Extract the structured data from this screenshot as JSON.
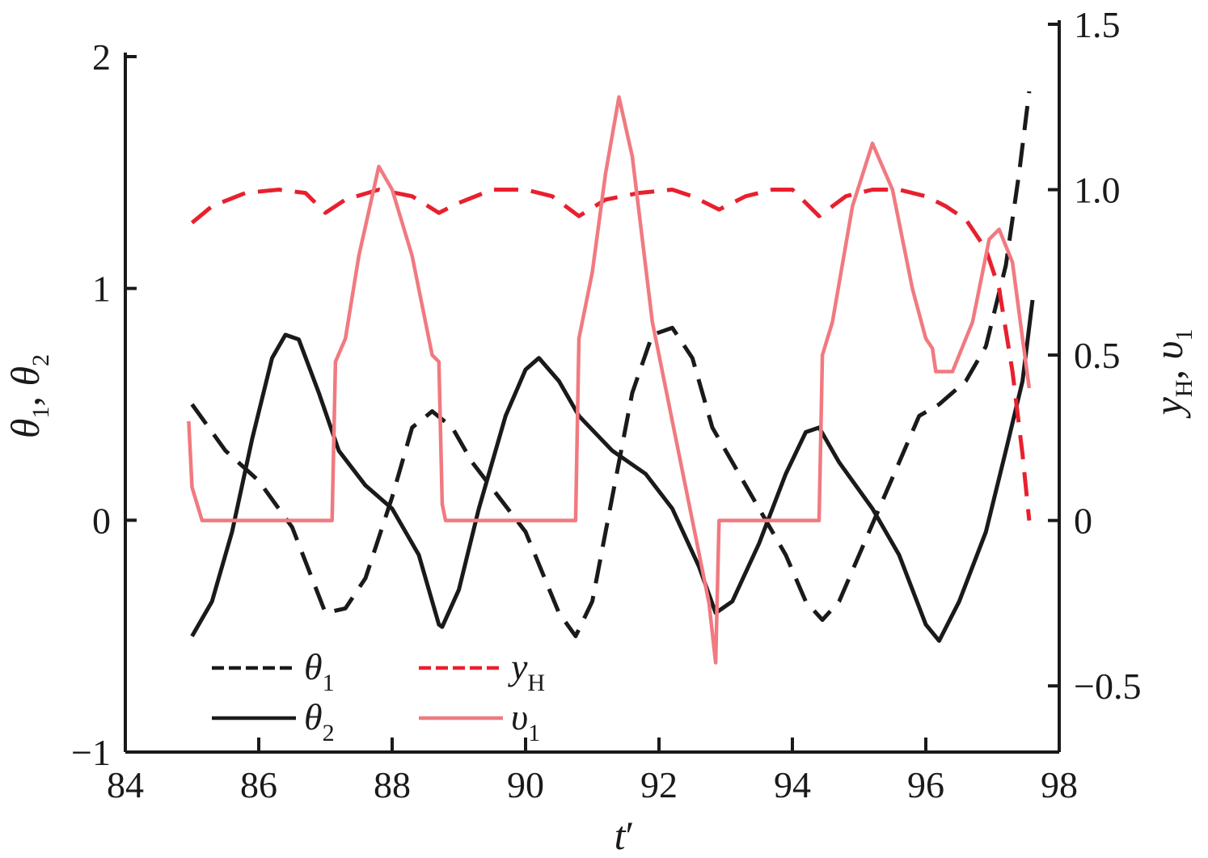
{
  "chart_data": {
    "type": "line",
    "xlabel": {
      "main": "t",
      "prime": "′"
    },
    "ylabel_left": {
      "a": "θ",
      "a_sub": "1",
      "sep": ", ",
      "b": "θ",
      "b_sub": "2"
    },
    "ylabel_right": {
      "a": "y",
      "a_sub": "H",
      "sep": ", ",
      "b": "υ",
      "b_sub": "1"
    },
    "xlim": [
      84,
      98
    ],
    "ylim_left": [
      -1,
      2
    ],
    "ylim_right": [
      -0.7,
      1.5
    ],
    "x_ticks": [
      "84",
      "86",
      "88",
      "90",
      "92",
      "94",
      "96",
      "98"
    ],
    "y_left_ticks": [
      "2",
      "1",
      "0",
      "−1"
    ],
    "y_right_ticks": [
      "1.5",
      "1.0",
      "0.5",
      "0",
      "−0.5"
    ],
    "colors": {
      "black": "#1a1a1a",
      "red": "#e8202e",
      "pink": "#f07a80"
    },
    "series": [
      {
        "name": "θ",
        "sub": "1",
        "axis": "left",
        "color": "#1a1a1a",
        "dash": "dashed",
        "points": [
          [
            85.0,
            0.5
          ],
          [
            85.5,
            0.3
          ],
          [
            86.0,
            0.17
          ],
          [
            86.5,
            -0.03
          ],
          [
            87.0,
            -0.4
          ],
          [
            87.3,
            -0.38
          ],
          [
            87.6,
            -0.25
          ],
          [
            88.0,
            0.1
          ],
          [
            88.3,
            0.4
          ],
          [
            88.6,
            0.47
          ],
          [
            88.9,
            0.4
          ],
          [
            89.2,
            0.25
          ],
          [
            89.6,
            0.1
          ],
          [
            90.0,
            -0.05
          ],
          [
            90.5,
            -0.4
          ],
          [
            90.75,
            -0.5
          ],
          [
            91.0,
            -0.35
          ],
          [
            91.3,
            0.1
          ],
          [
            91.6,
            0.55
          ],
          [
            91.9,
            0.8
          ],
          [
            92.2,
            0.83
          ],
          [
            92.5,
            0.7
          ],
          [
            92.8,
            0.4
          ],
          [
            93.2,
            0.2
          ],
          [
            93.5,
            0.05
          ],
          [
            93.9,
            -0.15
          ],
          [
            94.2,
            -0.35
          ],
          [
            94.45,
            -0.43
          ],
          [
            94.7,
            -0.35
          ],
          [
            95.0,
            -0.15
          ],
          [
            95.3,
            0.05
          ],
          [
            95.6,
            0.25
          ],
          [
            95.9,
            0.45
          ],
          [
            96.2,
            0.5
          ],
          [
            96.6,
            0.6
          ],
          [
            96.9,
            0.75
          ],
          [
            97.2,
            1.1
          ],
          [
            97.4,
            1.5
          ],
          [
            97.55,
            1.85
          ]
        ]
      },
      {
        "name": "θ",
        "sub": "2",
        "axis": "left",
        "color": "#1a1a1a",
        "dash": "solid",
        "points": [
          [
            85.0,
            -0.5
          ],
          [
            85.3,
            -0.35
          ],
          [
            85.6,
            -0.05
          ],
          [
            85.9,
            0.35
          ],
          [
            86.2,
            0.7
          ],
          [
            86.4,
            0.8
          ],
          [
            86.6,
            0.78
          ],
          [
            86.9,
            0.55
          ],
          [
            87.2,
            0.3
          ],
          [
            87.6,
            0.15
          ],
          [
            88.0,
            0.05
          ],
          [
            88.4,
            -0.15
          ],
          [
            88.7,
            -0.45
          ],
          [
            88.75,
            -0.46
          ],
          [
            89.0,
            -0.3
          ],
          [
            89.3,
            0.05
          ],
          [
            89.7,
            0.45
          ],
          [
            90.0,
            0.65
          ],
          [
            90.2,
            0.7
          ],
          [
            90.5,
            0.6
          ],
          [
            90.8,
            0.45
          ],
          [
            91.3,
            0.3
          ],
          [
            91.8,
            0.2
          ],
          [
            92.2,
            0.05
          ],
          [
            92.6,
            -0.2
          ],
          [
            92.85,
            -0.4
          ],
          [
            93.1,
            -0.35
          ],
          [
            93.5,
            -0.1
          ],
          [
            93.9,
            0.2
          ],
          [
            94.2,
            0.38
          ],
          [
            94.4,
            0.4
          ],
          [
            94.7,
            0.25
          ],
          [
            95.2,
            0.05
          ],
          [
            95.6,
            -0.15
          ],
          [
            96.0,
            -0.45
          ],
          [
            96.2,
            -0.52
          ],
          [
            96.5,
            -0.35
          ],
          [
            96.9,
            -0.05
          ],
          [
            97.2,
            0.3
          ],
          [
            97.45,
            0.6
          ],
          [
            97.6,
            0.95
          ]
        ]
      },
      {
        "name": "y",
        "sub": "H",
        "axis": "right",
        "color": "#e8202e",
        "dash": "dashed",
        "points": [
          [
            85.0,
            0.9
          ],
          [
            85.3,
            0.95
          ],
          [
            85.8,
            0.99
          ],
          [
            86.3,
            1.0
          ],
          [
            86.7,
            0.99
          ],
          [
            87.0,
            0.93
          ],
          [
            87.3,
            0.97
          ],
          [
            87.8,
            1.0
          ],
          [
            88.3,
            0.98
          ],
          [
            88.7,
            0.93
          ],
          [
            89.0,
            0.96
          ],
          [
            89.5,
            1.0
          ],
          [
            90.0,
            1.0
          ],
          [
            90.4,
            0.98
          ],
          [
            90.8,
            0.92
          ],
          [
            91.2,
            0.97
          ],
          [
            91.7,
            0.99
          ],
          [
            92.2,
            1.0
          ],
          [
            92.5,
            0.98
          ],
          [
            92.9,
            0.94
          ],
          [
            93.3,
            0.98
          ],
          [
            93.7,
            1.0
          ],
          [
            94.0,
            1.0
          ],
          [
            94.4,
            0.92
          ],
          [
            94.8,
            0.98
          ],
          [
            95.2,
            1.0
          ],
          [
            95.6,
            1.0
          ],
          [
            96.0,
            0.98
          ],
          [
            96.3,
            0.95
          ],
          [
            96.6,
            0.91
          ],
          [
            96.9,
            0.82
          ],
          [
            97.1,
            0.7
          ],
          [
            97.3,
            0.45
          ],
          [
            97.45,
            0.2
          ],
          [
            97.55,
            0.0
          ]
        ]
      },
      {
        "name": "υ",
        "sub": "1",
        "axis": "right",
        "color": "#f07a80",
        "dash": "solid",
        "points": [
          [
            84.95,
            0.3
          ],
          [
            85.0,
            0.1
          ],
          [
            85.15,
            0.0
          ],
          [
            87.1,
            0.0
          ],
          [
            87.15,
            0.48
          ],
          [
            87.3,
            0.55
          ],
          [
            87.5,
            0.8
          ],
          [
            87.8,
            1.07
          ],
          [
            88.0,
            1.0
          ],
          [
            88.3,
            0.8
          ],
          [
            88.6,
            0.5
          ],
          [
            88.7,
            0.48
          ],
          [
            88.75,
            0.05
          ],
          [
            88.8,
            0.0
          ],
          [
            90.75,
            0.0
          ],
          [
            90.8,
            0.55
          ],
          [
            91.0,
            0.75
          ],
          [
            91.2,
            1.05
          ],
          [
            91.4,
            1.28
          ],
          [
            91.6,
            1.1
          ],
          [
            91.9,
            0.6
          ],
          [
            92.2,
            0.3
          ],
          [
            92.5,
            0.0
          ],
          [
            92.75,
            -0.25
          ],
          [
            92.85,
            -0.43
          ],
          [
            92.9,
            0.0
          ],
          [
            94.4,
            0.0
          ],
          [
            94.45,
            0.5
          ],
          [
            94.6,
            0.6
          ],
          [
            94.9,
            0.95
          ],
          [
            95.2,
            1.14
          ],
          [
            95.5,
            1.0
          ],
          [
            95.8,
            0.7
          ],
          [
            96.0,
            0.55
          ],
          [
            96.1,
            0.52
          ],
          [
            96.15,
            0.45
          ],
          [
            96.4,
            0.45
          ],
          [
            96.7,
            0.6
          ],
          [
            96.95,
            0.85
          ],
          [
            97.1,
            0.88
          ],
          [
            97.3,
            0.78
          ],
          [
            97.45,
            0.55
          ],
          [
            97.55,
            0.4
          ]
        ]
      }
    ],
    "legend": [
      {
        "symbol": "θ",
        "sub": "1",
        "dash": "dashed",
        "color": "#1a1a1a"
      },
      {
        "symbol": "θ",
        "sub": "2",
        "dash": "solid",
        "color": "#1a1a1a"
      },
      {
        "symbol": "y",
        "sub": "H",
        "dash": "dashed",
        "color": "#e8202e"
      },
      {
        "symbol": "υ",
        "sub": "1",
        "dash": "solid",
        "color": "#f07a80"
      }
    ],
    "legend_position": "bottom-left",
    "grid": false
  }
}
